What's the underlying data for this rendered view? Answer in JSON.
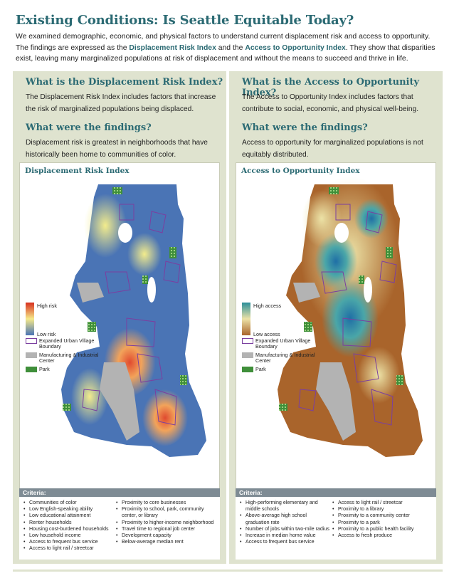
{
  "title": "Existing Conditions: Is Seattle Equitable Today?",
  "intro": {
    "part1": "We examined demographic, economic, and physical factors to understand current displacement risk and access to opportunity. The findings are expressed as the ",
    "link1": "Displacement Risk Index",
    "part2": " and the ",
    "link2": "Access to Opportunity Index",
    "part3": ". They show that disparities exist, leaving many marginalized populations at risk of displacement and without the means to succeed and thrive in life."
  },
  "left": {
    "heading1": "What is the Displacement Risk Index?",
    "text1": "The Displacement Risk Index includes factors that increase the risk of marginalized populations being displaced.",
    "heading2": "What were the findings?",
    "text2": "Displacement risk is greatest in neighborhoods that have historically been home to communities of color.",
    "map_title": "Displacement Risk Index",
    "legend": {
      "high": "High risk",
      "low": "Low risk",
      "urban_village": "Expanded Urban Village Boundary",
      "industrial": "Manufacturing & Industrial Center",
      "park": "Park",
      "colors": {
        "high": "#d7301f",
        "mid": "#f5e98a",
        "low": "#4a74b5"
      }
    },
    "criteria_title": "Criteria:",
    "criteria_col1": [
      "Communities of color",
      "Low English-speaking ability",
      "Low educational attainment",
      "Renter households",
      "Housing cost-burdened households",
      "Low household income",
      "Access to frequent bus service",
      "Access to light rail / streetcar"
    ],
    "criteria_col2": [
      "Proximity to core businesses",
      "Proximity to school, park, community center, or library",
      "Proximity to higher-income neighborhood",
      "Travel time to regional job center",
      "Development capacity",
      "Below-average median rent"
    ]
  },
  "right": {
    "heading1": "What is the Access to Opportunity Index?",
    "text1": "The Access to Opportunity Index includes factors that contribute to social, economic, and physical well-being.",
    "heading2": "What were the findings?",
    "text2": "Access to opportunity for marginalized populations is not equitably distributed.",
    "map_title": "Access to Opportunity Index",
    "legend": {
      "high": "High access",
      "low": "Low access",
      "urban_village": "Expanded Urban Village Boundary",
      "industrial": "Manufacturing & Industrial Center",
      "park": "Park",
      "colors": {
        "high": "#2b8f99",
        "mid": "#ece2a6",
        "low": "#a9642b"
      }
    },
    "criteria_title": "Criteria:",
    "criteria_col1": [
      "High-performing elementary and middle schools",
      "Above-average high school graduation rate",
      "Number of jobs within two-mile radius",
      "Increase in median home value",
      "Access to frequent bus service"
    ],
    "criteria_col2": [
      "Access to light rail / streetcar",
      "Proximity to a library",
      "Proximity to a community center",
      "Proximity to a park",
      "Proximity to a public health facility",
      "Access to fresh produce"
    ]
  },
  "colors": {
    "accent": "#2b6a73",
    "panel": "#dfe3cf",
    "boundary": "#7b3fa0",
    "industrial": "#b3b3b3",
    "park": "#3f8f3a"
  }
}
